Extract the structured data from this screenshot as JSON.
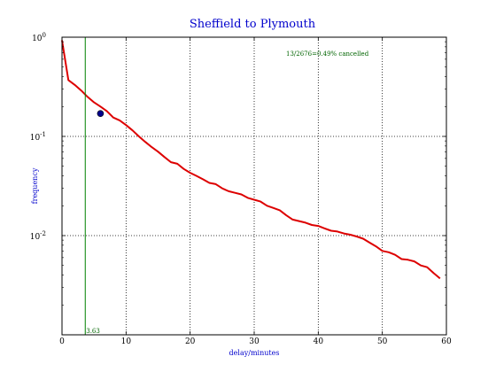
{
  "chart_data": {
    "type": "line",
    "title": "Sheffield to Plymouth",
    "xlabel": "delay/minutes",
    "ylabel": "frequency",
    "xlim": [
      0,
      60
    ],
    "ylim": [
      0.001,
      1
    ],
    "yscale": "log",
    "grid": true,
    "xticks": [
      "0",
      "10",
      "20",
      "30",
      "40",
      "50",
      "60"
    ],
    "yticks": [
      {
        "value": 1,
        "base": "10",
        "exp": "0"
      },
      {
        "value": 0.1,
        "base": "10",
        "exp": "-1"
      },
      {
        "value": 0.01,
        "base": "10",
        "exp": "-2"
      }
    ],
    "annotation": "13/2676=0.49% cancelled",
    "vline": {
      "x": 3.63,
      "label": "3.63",
      "color": "#008000"
    },
    "marker": {
      "x": 6,
      "y": 0.17,
      "color": "#00008b"
    },
    "series": [
      {
        "color": "#dd0000",
        "x": [
          0,
          1,
          2,
          3,
          4,
          5,
          6,
          7,
          8,
          9,
          10,
          11,
          12,
          13,
          14,
          15,
          16,
          17,
          18,
          19,
          20,
          21,
          22,
          23,
          24,
          25,
          26,
          27,
          28,
          29,
          30,
          31,
          32,
          33,
          34,
          35,
          36,
          37,
          38,
          39,
          40,
          41,
          42,
          43,
          44,
          45,
          46,
          47,
          48,
          49,
          50,
          51,
          52,
          53,
          54,
          55,
          56,
          57,
          58,
          59
        ],
        "y": [
          0.93,
          0.37,
          0.33,
          0.29,
          0.25,
          0.22,
          0.2,
          0.18,
          0.155,
          0.145,
          0.13,
          0.115,
          0.1,
          0.088,
          0.078,
          0.07,
          0.062,
          0.055,
          0.053,
          0.047,
          0.043,
          0.04,
          0.037,
          0.034,
          0.033,
          0.03,
          0.028,
          0.027,
          0.026,
          0.024,
          0.023,
          0.022,
          0.02,
          0.019,
          0.018,
          0.016,
          0.0145,
          0.014,
          0.0135,
          0.0128,
          0.0125,
          0.0118,
          0.0112,
          0.011,
          0.0105,
          0.0102,
          0.0098,
          0.0093,
          0.0085,
          0.0078,
          0.007,
          0.0068,
          0.0064,
          0.0058,
          0.0057,
          0.0055,
          0.005,
          0.0048,
          0.0042,
          0.0037
        ]
      }
    ]
  }
}
